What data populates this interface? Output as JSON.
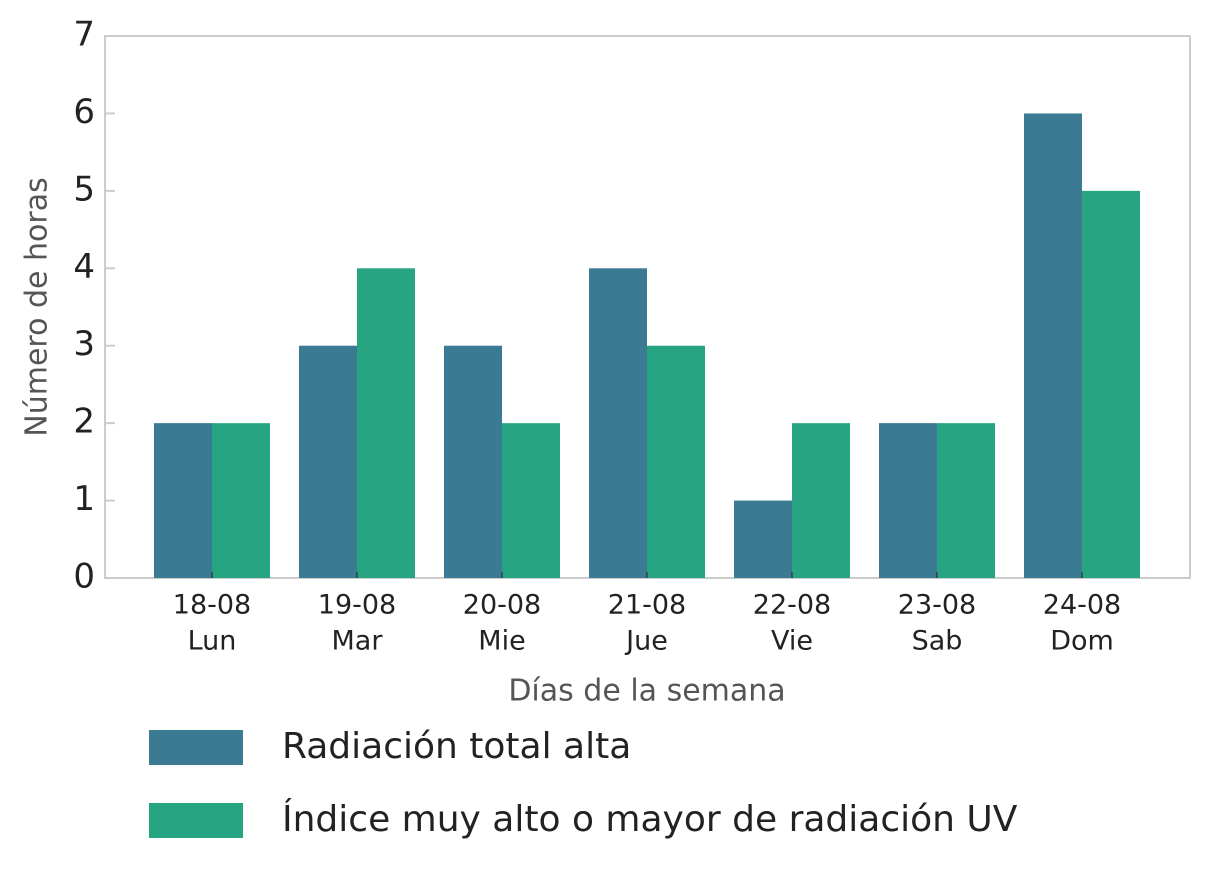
{
  "chart_data": {
    "type": "bar",
    "x_label": "Días de la semana",
    "y_label": "Número de horas",
    "categories": [
      [
        "18-08",
        "Lun"
      ],
      [
        "19-08",
        "Mar"
      ],
      [
        "20-08",
        "Mie"
      ],
      [
        "21-08",
        "Jue"
      ],
      [
        "22-08",
        "Vie"
      ],
      [
        "23-08",
        "Sab"
      ],
      [
        "24-08",
        "Dom"
      ]
    ],
    "series": [
      {
        "name": "Radiación total alta",
        "color": "#3a7a93",
        "values": [
          2,
          3,
          3,
          4,
          1,
          2,
          6
        ]
      },
      {
        "name": "Índice muy alto o mayor de radiación UV",
        "color": "#27a583",
        "values": [
          2,
          4,
          2,
          3,
          2,
          2,
          5
        ]
      }
    ],
    "ylim": [
      0,
      7
    ],
    "yticks": [
      0,
      1,
      2,
      3,
      4,
      5,
      6,
      7
    ],
    "grid": false,
    "legend": "bottom"
  }
}
